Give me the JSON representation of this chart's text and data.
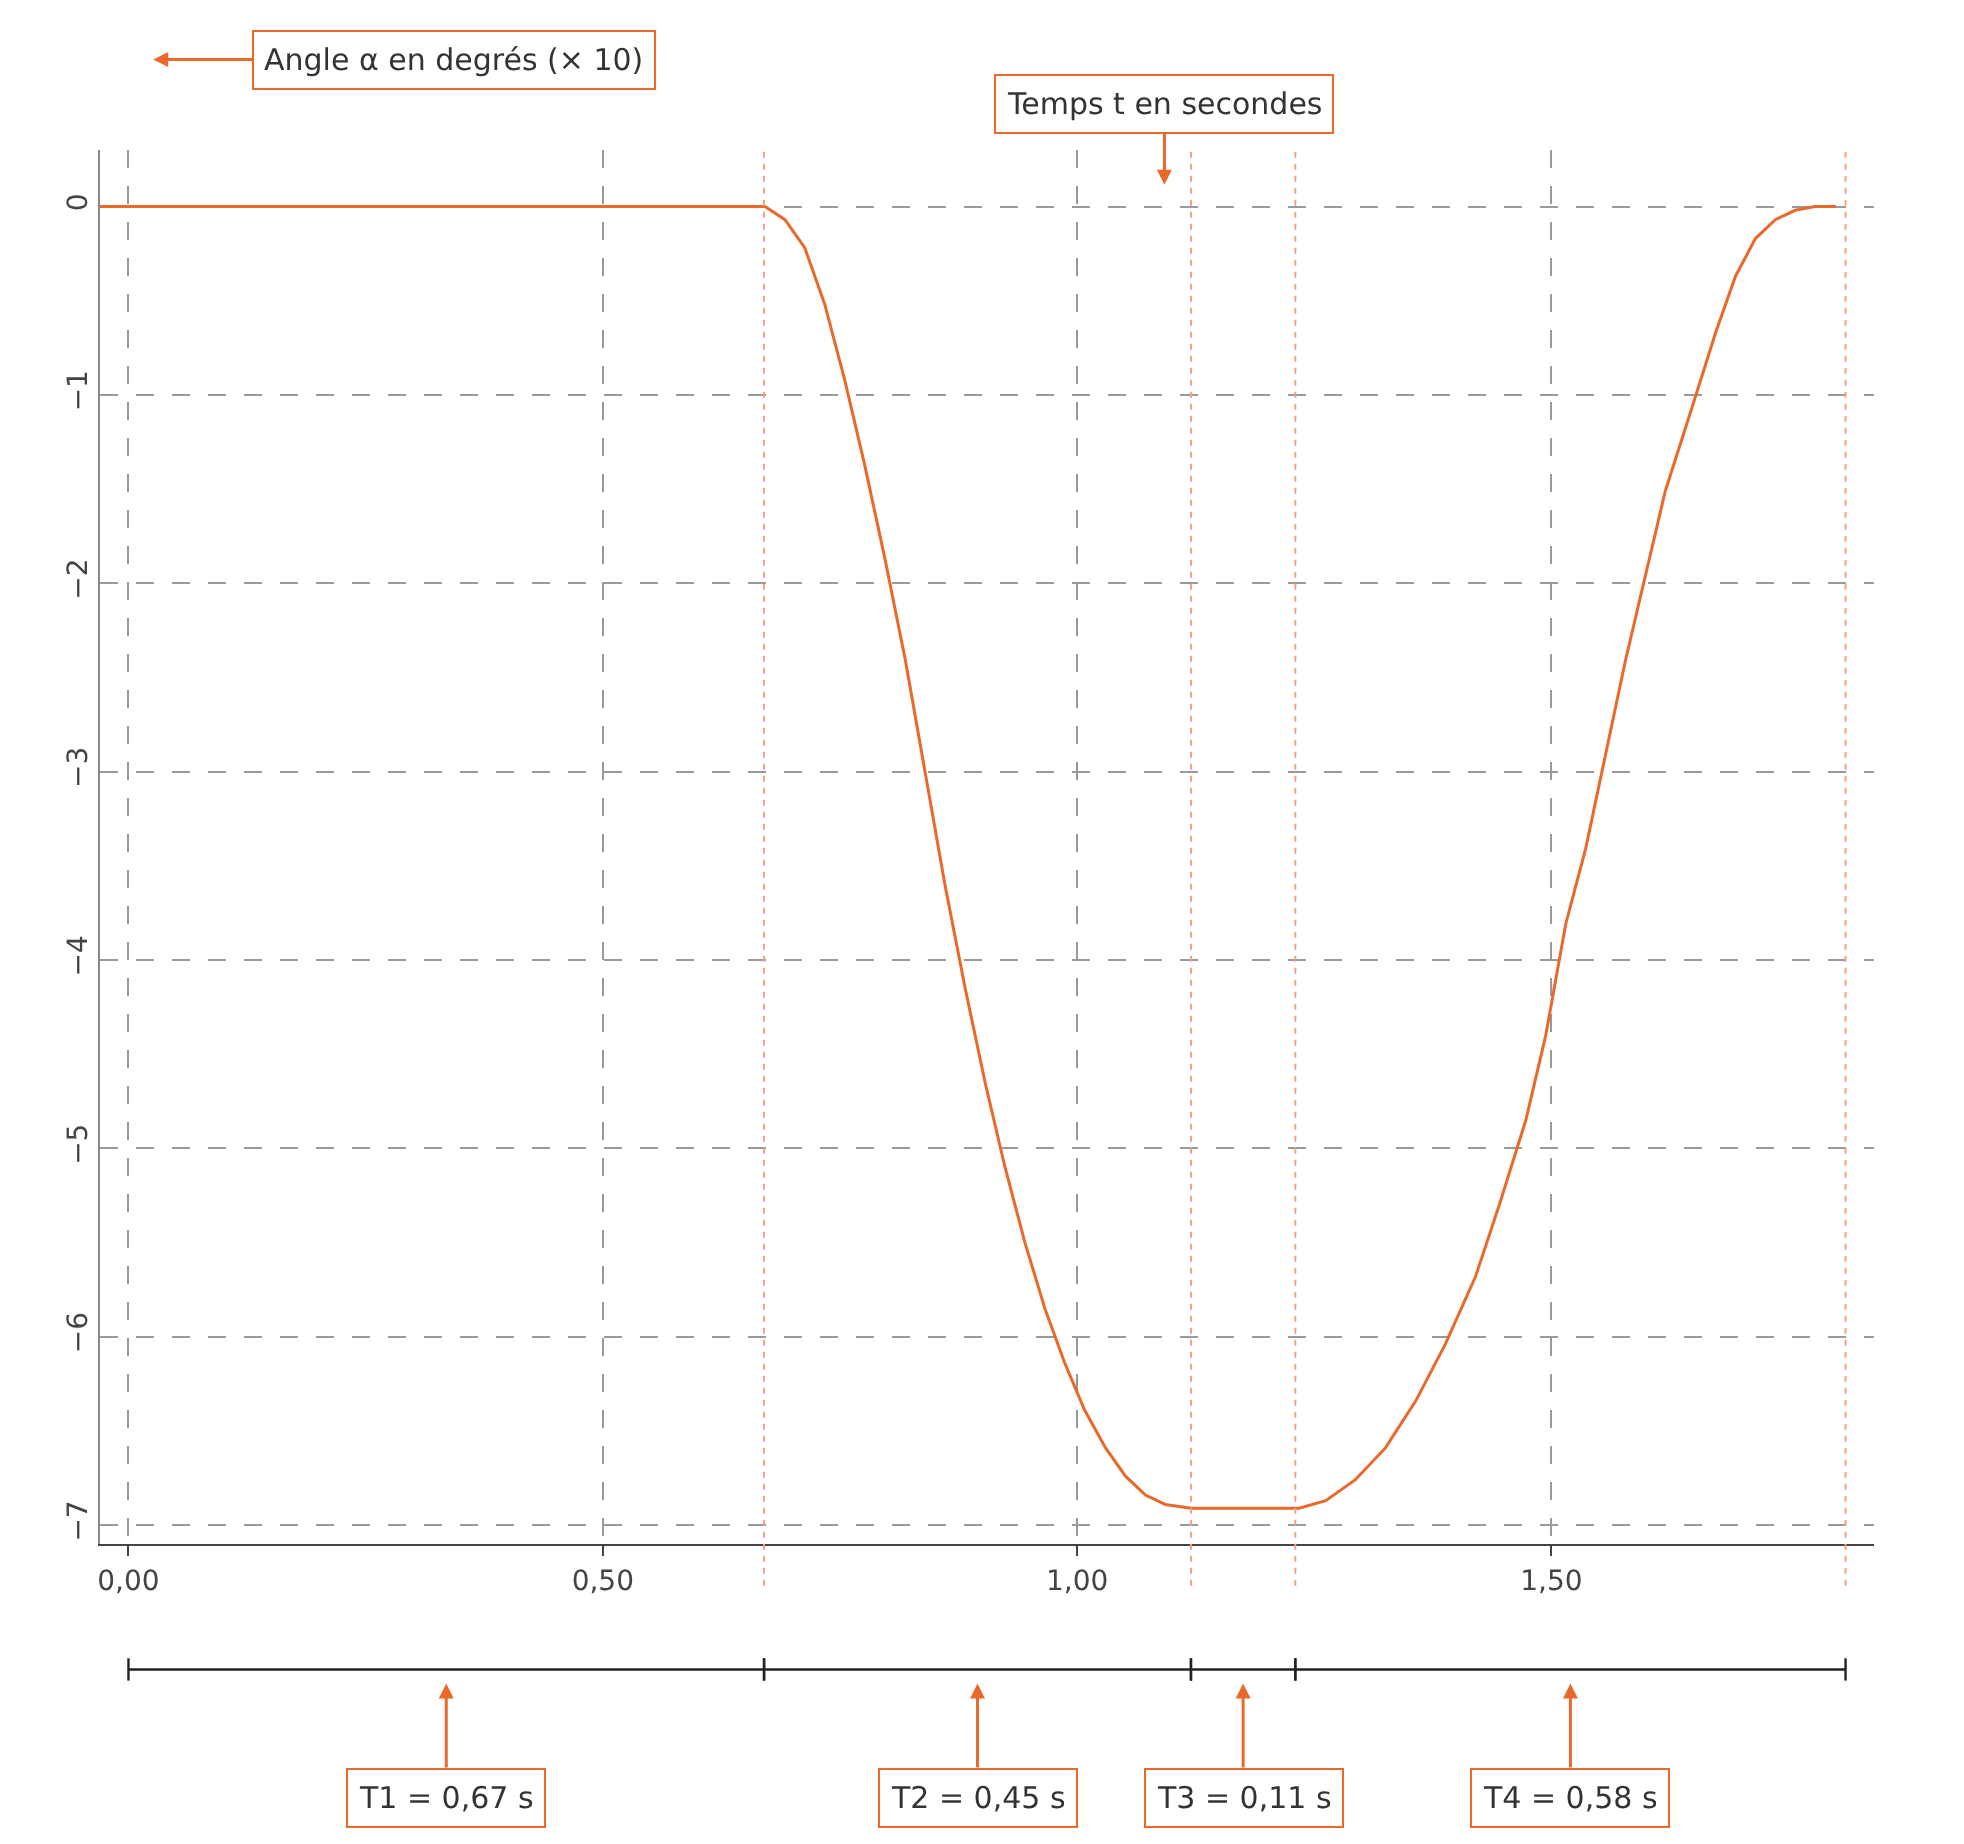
{
  "chart_data": {
    "type": "line",
    "xlabel": "Temps t en secondes",
    "ylabel": "Angle α en degrés (× 10)",
    "series": [
      {
        "color": "#e8692a",
        "x": [
          -0.03,
          0.671,
          0.692,
          0.713,
          0.734,
          0.755,
          0.776,
          0.797,
          0.819,
          0.84,
          0.861,
          0.882,
          0.903,
          0.924,
          0.945,
          0.966,
          0.987,
          1.008,
          1.03,
          1.051,
          1.072,
          1.093,
          1.12,
          1.234,
          1.262,
          1.293,
          1.325,
          1.357,
          1.388,
          1.42,
          1.445,
          1.473,
          1.494,
          1.515,
          1.536,
          1.557,
          1.578,
          1.599,
          1.62,
          1.648,
          1.673,
          1.694,
          1.715,
          1.736,
          1.757,
          1.778,
          1.8
        ],
        "values": [
          0,
          0,
          -0.07,
          -0.22,
          -0.52,
          -0.92,
          -1.37,
          -1.86,
          -2.41,
          -3.01,
          -3.61,
          -4.15,
          -4.65,
          -5.1,
          -5.5,
          -5.85,
          -6.14,
          -6.39,
          -6.59,
          -6.74,
          -6.84,
          -6.89,
          -6.91,
          -6.91,
          -6.87,
          -6.76,
          -6.59,
          -6.34,
          -6.04,
          -5.68,
          -5.3,
          -4.85,
          -4.4,
          -3.81,
          -3.41,
          -2.91,
          -2.41,
          -1.96,
          -1.51,
          -1.07,
          -0.67,
          -0.37,
          -0.17,
          -0.07,
          -0.02,
          0,
          0
        ]
      }
    ],
    "xlim": [
      -0.03,
      1.84
    ],
    "ylim": [
      -7.1,
      0.3
    ],
    "xticks": [
      {
        "value": 0,
        "label": "0,00"
      },
      {
        "value": 0.5,
        "label": "0,50"
      },
      {
        "value": 1,
        "label": "1,00"
      },
      {
        "value": 1.5,
        "label": "1,50"
      }
    ],
    "yticks": [
      {
        "value": 0,
        "label": "0"
      },
      {
        "value": -1,
        "label": "−1"
      },
      {
        "value": -2,
        "label": "−2"
      },
      {
        "value": -3,
        "label": "−3"
      },
      {
        "value": -4,
        "label": "−4"
      },
      {
        "value": -5,
        "label": "−5"
      },
      {
        "value": -6,
        "label": "−6"
      },
      {
        "value": -7,
        "label": "−7"
      }
    ],
    "ref_lines": [
      {
        "axis": "x",
        "value": 0.67,
        "color": "#f4a27a",
        "line_style": "dotted"
      },
      {
        "axis": "x",
        "value": 1.12,
        "color": "#f4a27a",
        "line_style": "dotted"
      },
      {
        "axis": "x",
        "value": 1.23,
        "color": "#f4a27a",
        "line_style": "dotted"
      },
      {
        "axis": "x",
        "value": 1.81,
        "color": "#f4a27a",
        "line_style": "dotted"
      }
    ],
    "annotations": [
      "T1 = 0,67 s",
      "T2 = 0,45 s",
      "T3 = 0,11 s",
      "T4 = 0,58 s"
    ],
    "grid": true,
    "marker": "none",
    "line_style": "solid"
  }
}
